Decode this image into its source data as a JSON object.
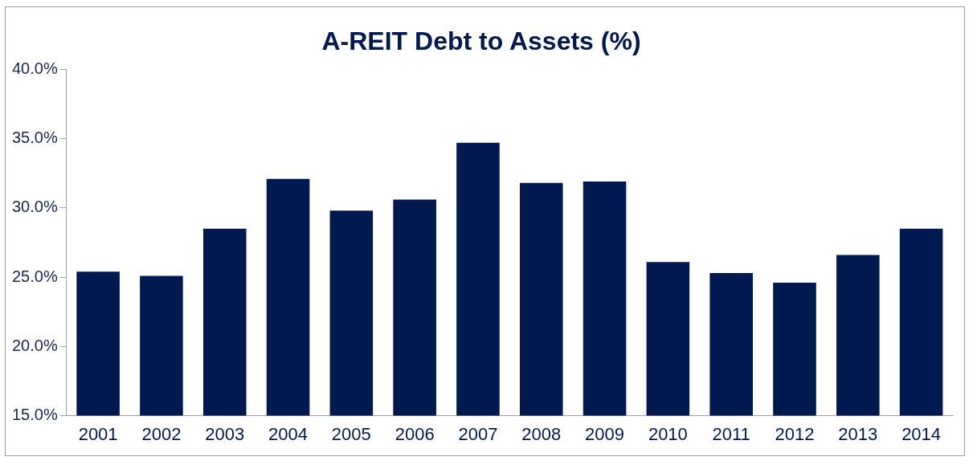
{
  "chart_data": {
    "type": "bar",
    "title": "A-REIT Debt to Assets (%)",
    "categories": [
      "2001",
      "2002",
      "2003",
      "2004",
      "2005",
      "2006",
      "2007",
      "2008",
      "2009",
      "2010",
      "2011",
      "2012",
      "2013",
      "2014"
    ],
    "values": [
      25.4,
      25.1,
      28.5,
      32.1,
      29.8,
      30.6,
      34.7,
      31.8,
      31.9,
      26.1,
      25.3,
      24.6,
      26.6,
      28.5
    ],
    "color": "#001a4f",
    "ylim": [
      15,
      40
    ],
    "yticks": [
      {
        "value": 15,
        "label": "15.0%"
      },
      {
        "value": 20,
        "label": "20.0%"
      },
      {
        "value": 25,
        "label": "25.0%"
      },
      {
        "value": 30,
        "label": "30.0%"
      },
      {
        "value": 35,
        "label": "35.0%"
      },
      {
        "value": 40,
        "label": "40.0%"
      }
    ],
    "grid": false,
    "legend": false
  }
}
